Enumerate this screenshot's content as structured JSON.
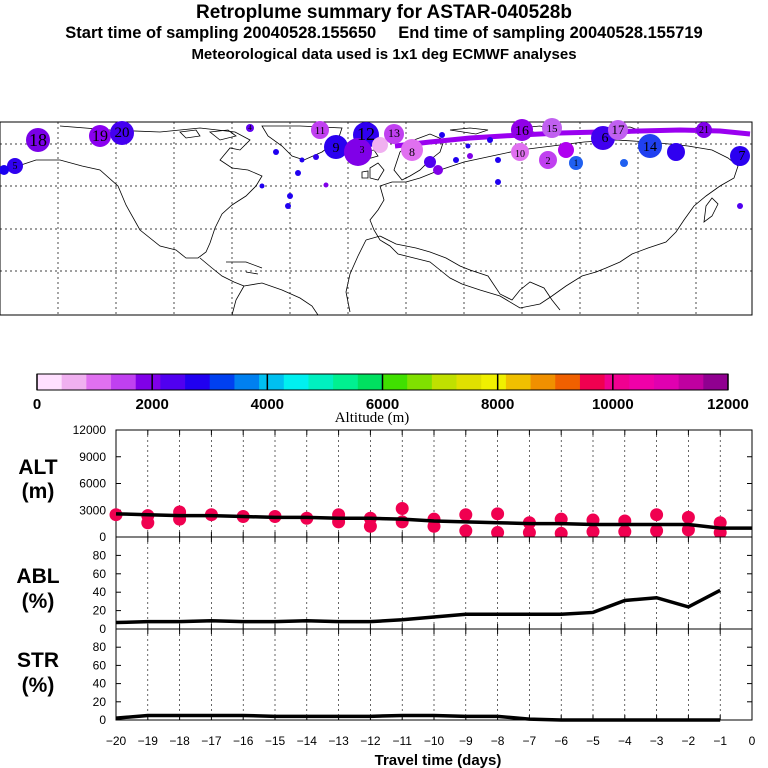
{
  "header": {
    "title": "Retroplume summary for ASTAR-040528b",
    "start_label": "Start time of sampling 20040528.155650",
    "end_label": "End time of sampling 20040528.155719",
    "met_label": "Meteorological data used is 1x1 deg ECMWF analyses"
  },
  "map": {
    "day_labels": [
      "18",
      "19",
      "20",
      "11",
      "12",
      "9",
      "8",
      "13",
      "6",
      "17",
      "14",
      "16",
      "15",
      "7",
      "3",
      "10",
      "2",
      "1",
      "4",
      "5",
      "21"
    ]
  },
  "colorbar": {
    "colors": [
      "#ffe0ff",
      "#f0b0f0",
      "#e070f0",
      "#c040f0",
      "#8000e8",
      "#5000f0",
      "#2000f0",
      "#0040f0",
      "#0080f0",
      "#00c0f0",
      "#00f0f0",
      "#00f0c0",
      "#00f090",
      "#00e060",
      "#40e000",
      "#80e000",
      "#c0e000",
      "#e0e000",
      "#f0f000",
      "#f0c000",
      "#f09000",
      "#f06000",
      "#f00050",
      "#f00090",
      "#f000a8",
      "#e000b0",
      "#c000a0",
      "#900090"
    ],
    "tick_labels": [
      "0",
      "2000",
      "4000",
      "6000",
      "8000",
      "10000",
      "12000"
    ],
    "label": "Altitude (m)"
  },
  "chart_data": [
    {
      "type": "line",
      "name": "ALT",
      "ylabel": "ALT\n(m)",
      "ylabel_lines": [
        "ALT",
        "(m)"
      ],
      "ylim": [
        0,
        12000
      ],
      "yticks": [
        "12000",
        "9000",
        "6000",
        "3000",
        "0"
      ],
      "x": [
        -20,
        -19,
        -18,
        -17,
        -16,
        -15,
        -14,
        -13,
        -12,
        -11,
        -10,
        -9,
        -8,
        -7,
        -6,
        -5,
        -4,
        -3,
        -2,
        -1,
        0
      ],
      "mean_altitude": [
        2600,
        2500,
        2400,
        2400,
        2300,
        2200,
        2200,
        2100,
        2100,
        2000,
        1800,
        1700,
        1600,
        1500,
        1500,
        1400,
        1400,
        1400,
        1400,
        1000,
        1000
      ],
      "scatter_points": [
        {
          "x": -20,
          "y": 2500
        },
        {
          "x": -19,
          "y": 2400
        },
        {
          "x": -19,
          "y": 1600
        },
        {
          "x": -18,
          "y": 2800
        },
        {
          "x": -18,
          "y": 2000
        },
        {
          "x": -17,
          "y": 2500
        },
        {
          "x": -16,
          "y": 2300
        },
        {
          "x": -15,
          "y": 2300
        },
        {
          "x": -14,
          "y": 2100
        },
        {
          "x": -13,
          "y": 2500
        },
        {
          "x": -13,
          "y": 1700
        },
        {
          "x": -12,
          "y": 2100
        },
        {
          "x": -12,
          "y": 1200
        },
        {
          "x": -11,
          "y": 3200
        },
        {
          "x": -11,
          "y": 1700
        },
        {
          "x": -10,
          "y": 2000
        },
        {
          "x": -10,
          "y": 1200
        },
        {
          "x": -9,
          "y": 2500
        },
        {
          "x": -9,
          "y": 700
        },
        {
          "x": -8,
          "y": 2600
        },
        {
          "x": -8,
          "y": 500
        },
        {
          "x": -7,
          "y": 1600
        },
        {
          "x": -7,
          "y": 500
        },
        {
          "x": -6,
          "y": 2000
        },
        {
          "x": -6,
          "y": 400
        },
        {
          "x": -5,
          "y": 1900
        },
        {
          "x": -5,
          "y": 600
        },
        {
          "x": -4,
          "y": 1800
        },
        {
          "x": -4,
          "y": 600
        },
        {
          "x": -3,
          "y": 2500
        },
        {
          "x": -3,
          "y": 700
        },
        {
          "x": -2,
          "y": 2200
        },
        {
          "x": -2,
          "y": 800
        },
        {
          "x": -1,
          "y": 1600
        },
        {
          "x": -1,
          "y": 500
        }
      ],
      "point_color": "#f00050"
    },
    {
      "type": "line",
      "name": "ABL",
      "ylabel_lines": [
        "ABL",
        "(%)"
      ],
      "ylim": [
        0,
        100
      ],
      "yticks": [
        "80",
        "60",
        "40",
        "20",
        "0"
      ],
      "x": [
        -20,
        -19,
        -18,
        -17,
        -16,
        -15,
        -14,
        -13,
        -12,
        -11,
        -10,
        -9,
        -8,
        -7,
        -6,
        -5,
        -4,
        -3,
        -2,
        -1
      ],
      "values": [
        7,
        8,
        8,
        9,
        8,
        8,
        9,
        8,
        8,
        10,
        13,
        16,
        16,
        16,
        16,
        18,
        31,
        34,
        24,
        42
      ]
    },
    {
      "type": "line",
      "name": "STR",
      "ylabel_lines": [
        "STR",
        "(%)"
      ],
      "ylim": [
        0,
        100
      ],
      "yticks": [
        "80",
        "60",
        "40",
        "20",
        "0"
      ],
      "x": [
        -20,
        -19,
        -18,
        -17,
        -16,
        -15,
        -14,
        -13,
        -12,
        -11,
        -10,
        -9,
        -8,
        -7,
        -6,
        -5,
        -4,
        -3,
        -2,
        -1
      ],
      "values": [
        2,
        5,
        5,
        5,
        5,
        4,
        4,
        4,
        4,
        5,
        5,
        4,
        4,
        1,
        0,
        0,
        0,
        0,
        0,
        0
      ]
    }
  ],
  "xaxis": {
    "tick_labels": [
      "−20",
      "−19",
      "−18",
      "−17",
      "−16",
      "−15",
      "−14",
      "−13",
      "−12",
      "−11",
      "−10",
      "−9",
      "−8",
      "−7",
      "−6",
      "−5",
      "−4",
      "−3",
      "−2",
      "−1",
      "0"
    ],
    "label": "Travel time (days)"
  }
}
